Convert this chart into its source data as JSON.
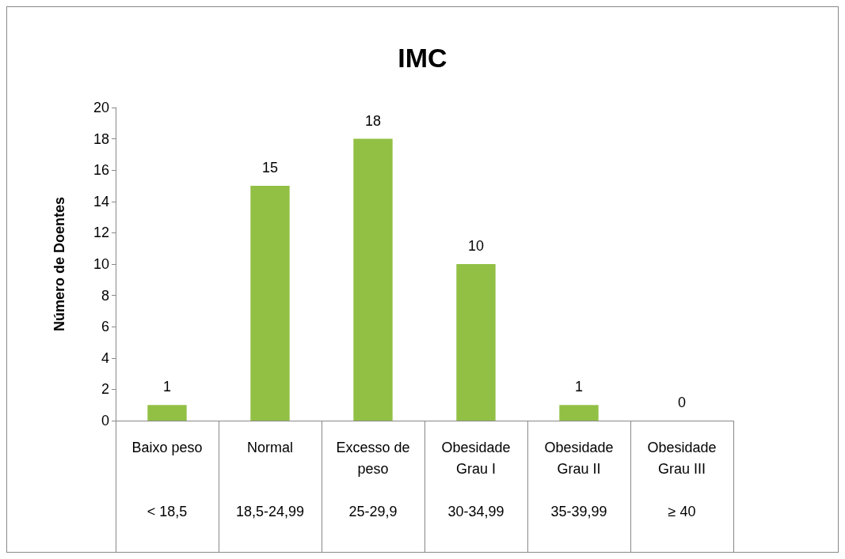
{
  "chart_data": {
    "type": "bar",
    "title": "IMC",
    "ylabel": "Número de Doentes",
    "categories": [
      "Baixo peso\n< 18,5",
      "Normal\n18,5-24,99",
      "Excesso de\npeso\n25-29,9",
      "Obesidade\nGrau I\n30-34,99",
      "Obesidade\nGrau II\n35-39,99",
      "Obesidade\nGrau III\n≥ 40"
    ],
    "values": [
      1,
      15,
      18,
      10,
      1,
      0
    ],
    "color": "#92c045",
    "ylim": [
      0,
      20
    ],
    "yticks": [
      0,
      2,
      4,
      6,
      8,
      10,
      12,
      14,
      16,
      18,
      20
    ],
    "grid": false,
    "data_labels": true
  }
}
